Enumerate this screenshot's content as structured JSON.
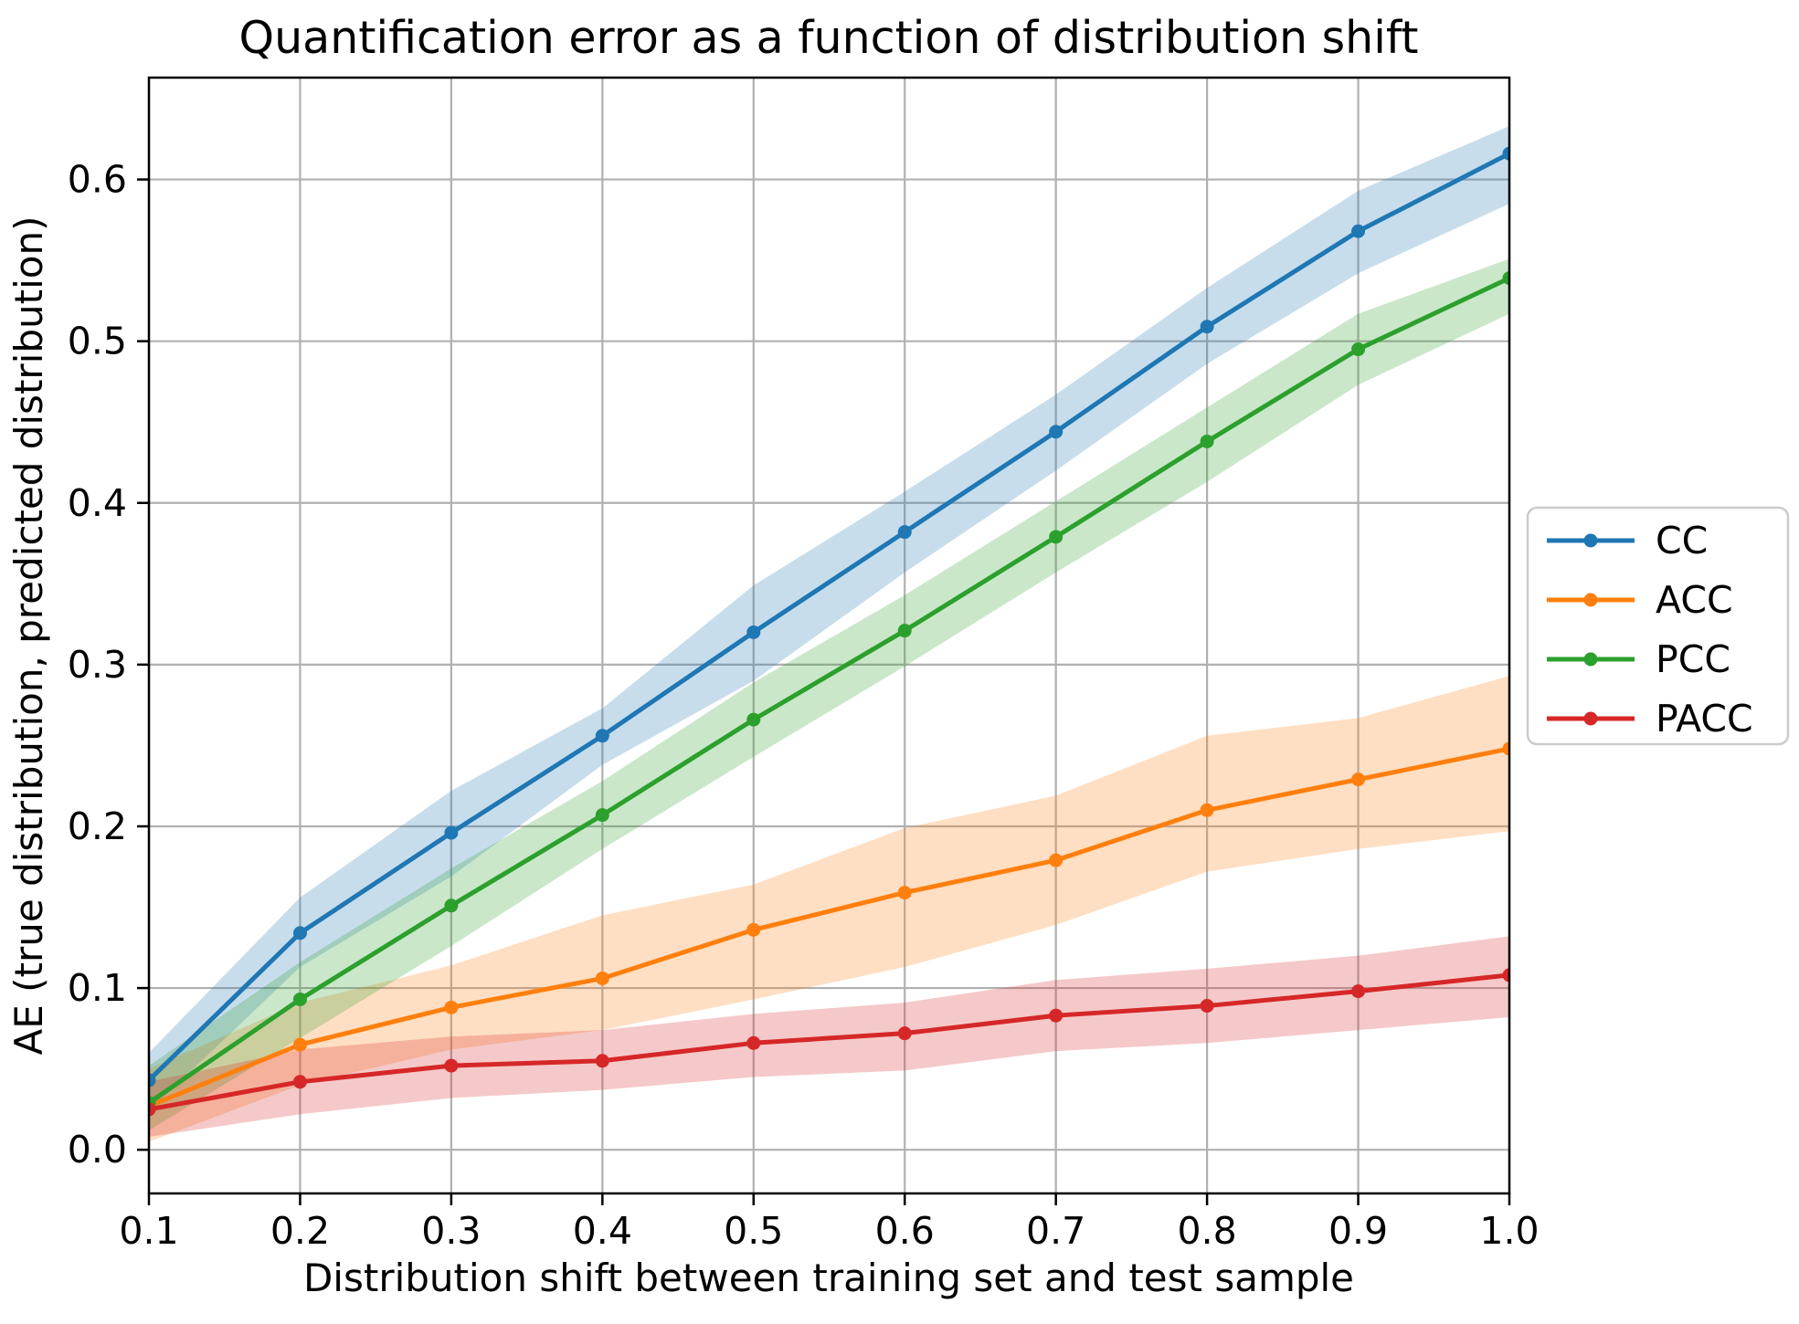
{
  "chart_data": {
    "type": "line",
    "title": "Quantification error as a function of distribution shift",
    "xlabel": "Distribution shift between training set and test sample",
    "ylabel": "AE (true distribution, predicted distribution)",
    "x": [
      0.1,
      0.2,
      0.3,
      0.4,
      0.5,
      0.6,
      0.7,
      0.8,
      0.9,
      1.0
    ],
    "xlim": [
      0.1,
      1.0
    ],
    "ylim": [
      -0.027,
      0.663
    ],
    "xticks": [
      "0.1",
      "0.2",
      "0.3",
      "0.4",
      "0.5",
      "0.6",
      "0.7",
      "0.8",
      "0.9",
      "1.0"
    ],
    "yticks": [
      "0.0",
      "0.1",
      "0.2",
      "0.3",
      "0.4",
      "0.5",
      "0.6"
    ],
    "grid": true,
    "grid_color": "#b0b0b0",
    "legend_position": "outside-right",
    "marker": "dot",
    "series": [
      {
        "name": "CC",
        "color": "#1f77b4",
        "values": [
          0.043,
          0.134,
          0.196,
          0.256,
          0.32,
          0.382,
          0.444,
          0.509,
          0.568,
          0.616
        ],
        "band_lower": [
          0.024,
          0.113,
          0.169,
          0.238,
          0.29,
          0.357,
          0.42,
          0.486,
          0.542,
          0.585
        ],
        "band_upper": [
          0.06,
          0.156,
          0.222,
          0.273,
          0.349,
          0.407,
          0.467,
          0.533,
          0.593,
          0.633
        ]
      },
      {
        "name": "ACC",
        "color": "#ff7f0e",
        "values": [
          0.027,
          0.065,
          0.088,
          0.106,
          0.136,
          0.159,
          0.179,
          0.21,
          0.229,
          0.248
        ],
        "band_lower": [
          0.005,
          0.04,
          0.062,
          0.074,
          0.093,
          0.113,
          0.139,
          0.172,
          0.186,
          0.197
        ],
        "band_upper": [
          0.05,
          0.091,
          0.114,
          0.145,
          0.164,
          0.199,
          0.219,
          0.256,
          0.267,
          0.293
        ]
      },
      {
        "name": "PCC",
        "color": "#2ca02c",
        "values": [
          0.029,
          0.093,
          0.151,
          0.207,
          0.266,
          0.321,
          0.379,
          0.438,
          0.495,
          0.539
        ],
        "band_lower": [
          0.012,
          0.069,
          0.126,
          0.186,
          0.243,
          0.299,
          0.357,
          0.413,
          0.473,
          0.517
        ],
        "band_upper": [
          0.052,
          0.116,
          0.174,
          0.228,
          0.289,
          0.343,
          0.401,
          0.459,
          0.517,
          0.551
        ]
      },
      {
        "name": "PACC",
        "color": "#d62728",
        "values": [
          0.025,
          0.042,
          0.052,
          0.055,
          0.066,
          0.072,
          0.083,
          0.089,
          0.098,
          0.108
        ],
        "band_lower": [
          0.008,
          0.022,
          0.032,
          0.037,
          0.045,
          0.049,
          0.061,
          0.066,
          0.074,
          0.082
        ],
        "band_upper": [
          0.042,
          0.062,
          0.07,
          0.074,
          0.084,
          0.091,
          0.105,
          0.112,
          0.12,
          0.132
        ]
      }
    ]
  }
}
